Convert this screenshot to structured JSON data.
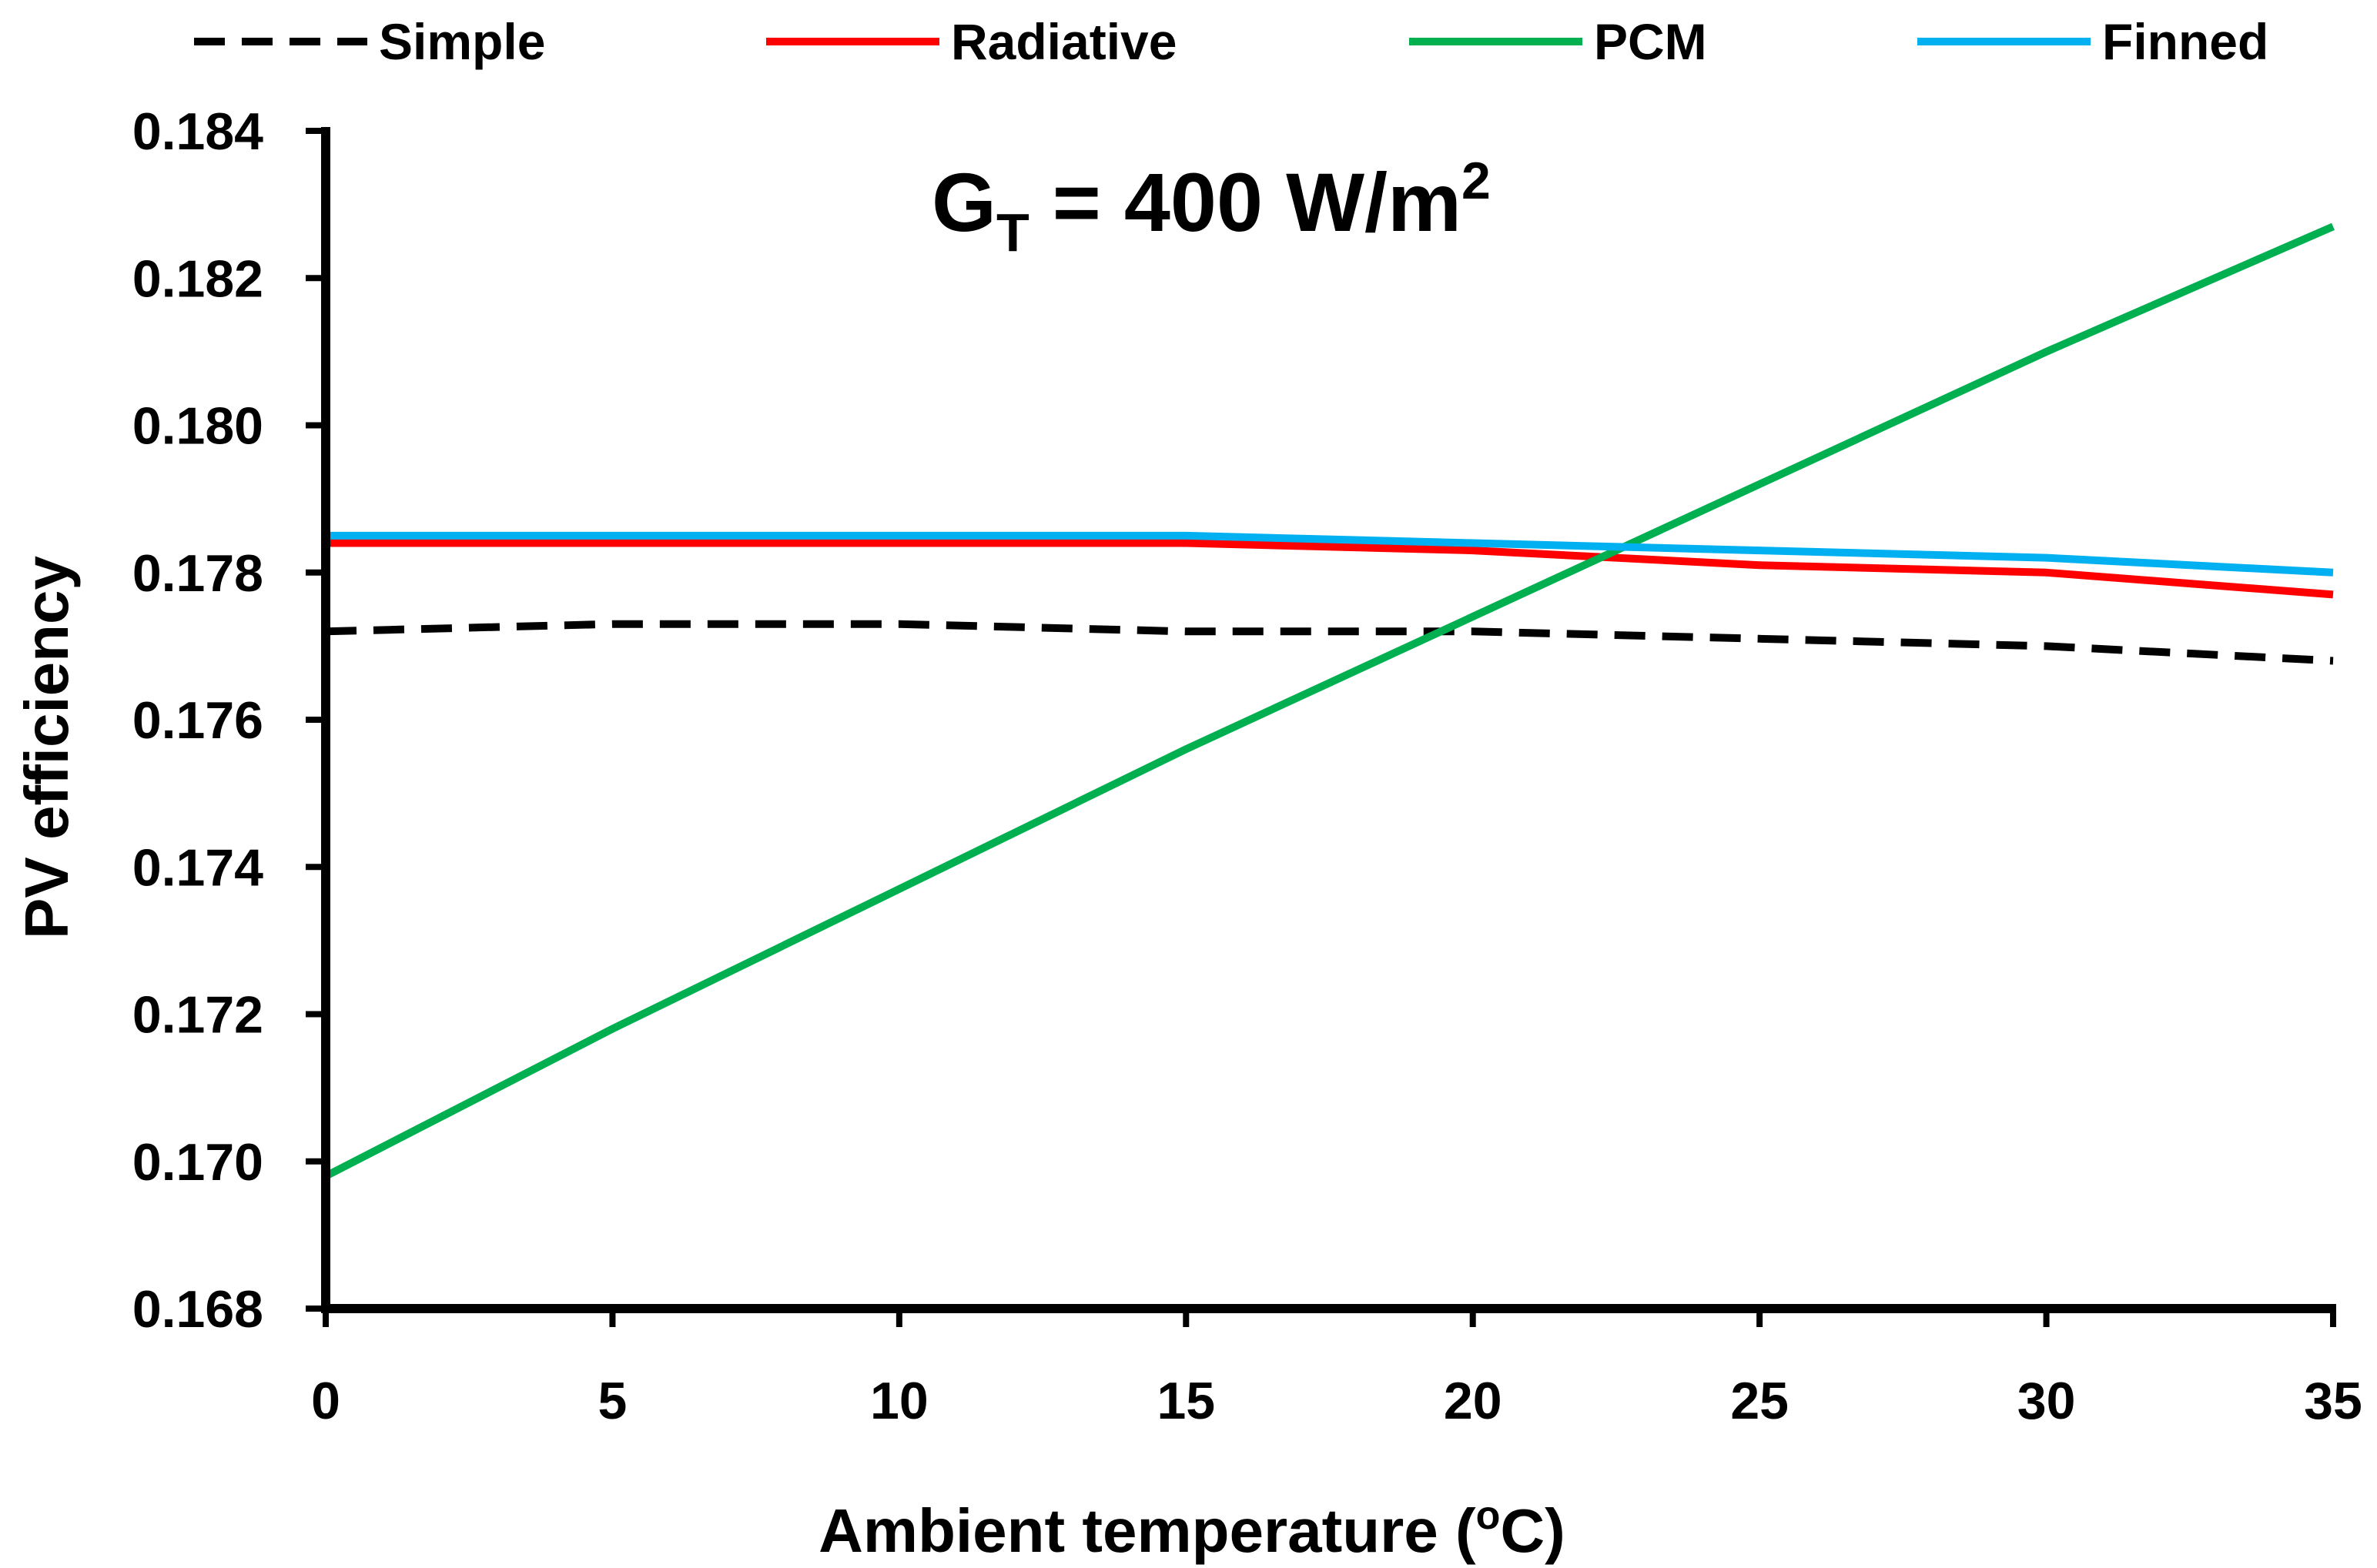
{
  "chart_data": {
    "type": "line",
    "title": "",
    "annotation": {
      "main": "G",
      "sub": "T",
      "rest": " = 400 W/m",
      "sup": "2"
    },
    "xlabel": {
      "main": "Ambient temperature (",
      "sup": "o",
      "rest": "C)"
    },
    "ylabel": "PV efficiency",
    "xlim": [
      0,
      35
    ],
    "ylim": [
      0.168,
      0.184
    ],
    "x_ticks": [
      0,
      5,
      10,
      15,
      20,
      25,
      30,
      35
    ],
    "x_tick_labels": [
      "0",
      "5",
      "10",
      "15",
      "20",
      "25",
      "30",
      "35"
    ],
    "y_ticks": [
      0.168,
      0.17,
      0.172,
      0.174,
      0.176,
      0.178,
      0.18,
      0.182,
      0.184
    ],
    "y_tick_labels": [
      "0.168",
      "0.170",
      "0.172",
      "0.174",
      "0.176",
      "0.178",
      "0.180",
      "0.182",
      "0.184"
    ],
    "grid": false,
    "legend_position": "top",
    "x": [
      0,
      5,
      10,
      15,
      20,
      25,
      30,
      35
    ],
    "series": [
      {
        "name": "Simple",
        "color": "#000000",
        "dash": "dashed",
        "values": [
          0.1772,
          0.1773,
          0.1773,
          0.1772,
          0.1772,
          0.1771,
          0.177,
          0.1768
        ]
      },
      {
        "name": "Radiative",
        "color": "#ff0000",
        "dash": "solid",
        "values": [
          0.1784,
          0.1784,
          0.1784,
          0.1784,
          0.1783,
          0.1781,
          0.178,
          0.1777
        ]
      },
      {
        "name": "PCM",
        "color": "#00b050",
        "dash": "solid",
        "values": [
          0.1698,
          0.1718,
          0.1737,
          0.1756,
          0.1774,
          0.1792,
          0.181,
          0.1827
        ]
      },
      {
        "name": "Finned",
        "color": "#00b0f0",
        "dash": "solid",
        "values": [
          0.1785,
          0.1785,
          0.1785,
          0.1785,
          0.1784,
          0.1783,
          0.1782,
          0.178
        ]
      }
    ]
  }
}
